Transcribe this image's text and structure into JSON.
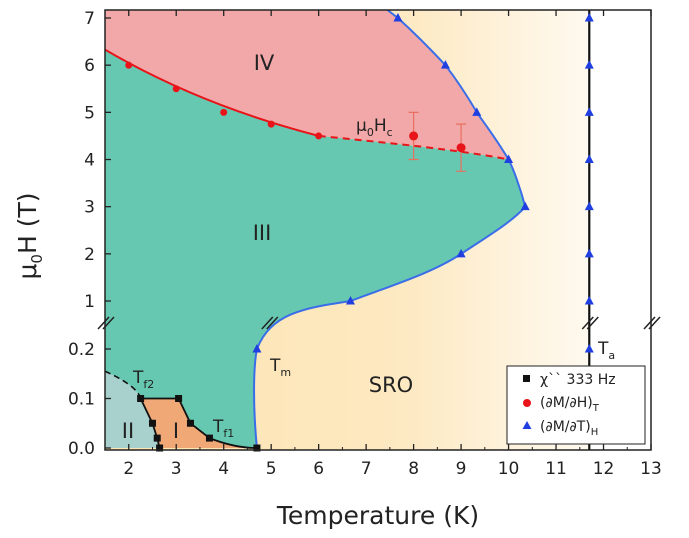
{
  "chart_data": {
    "type": "scatter",
    "title": "",
    "xlabel": "Temperature (K)",
    "ylabel": "μ0H (T)",
    "ylabel_main": "μ",
    "ylabel_sub": "0",
    "ylabel_rest": "H (T)",
    "xlim": [
      1.5,
      13
    ],
    "x_ticks": [
      2,
      3,
      4,
      5,
      6,
      7,
      8,
      9,
      10,
      11,
      12,
      13
    ],
    "y_scale": "broken",
    "y_lower_range": [
      0,
      0.25
    ],
    "y_upper_range": [
      0.75,
      7.2
    ],
    "y_ticks_lower": [
      "0.0",
      "0.1",
      "0.2"
    ],
    "y_ticks_upper": [
      "1",
      "2",
      "3",
      "4",
      "5",
      "6",
      "7"
    ],
    "legend_position": "bottom-right",
    "regions": [
      {
        "label": "I",
        "color": "#f0a877"
      },
      {
        "label": "II",
        "color": "#a8d0cc"
      },
      {
        "label": "III",
        "color": "#66c8b0"
      },
      {
        "label": "IV",
        "color": "#f2a8a8"
      },
      {
        "label": "SRO",
        "color": "#fde9c0"
      }
    ],
    "annotations": {
      "hc_main": "μ",
      "hc_sub1": "0",
      "hc_mid": "H",
      "hc_sub2": "c",
      "tf2_main": "T",
      "tf2_sub": "f2",
      "tf1_main": "T",
      "tf1_sub": "f1",
      "tm_main": "T",
      "tm_sub": "m",
      "ta_main": "T",
      "ta_sub": "a"
    },
    "series": [
      {
        "name": "χ`` 333 Hz",
        "marker": "square",
        "color": "#111111",
        "points": [
          [
            2.25,
            0.1
          ],
          [
            2.5,
            0.05
          ],
          [
            2.6,
            0.02
          ],
          [
            2.65,
            0.0
          ],
          [
            3.05,
            0.1
          ],
          [
            3.3,
            0.05
          ],
          [
            3.7,
            0.02
          ],
          [
            4.7,
            0.0
          ]
        ]
      },
      {
        "name": "(∂M/∂H)T",
        "name_main": "(∂M/∂H)",
        "name_sub": "T",
        "marker": "circle",
        "color": "#e8141a",
        "points": [
          [
            2.0,
            6.0
          ],
          [
            3.0,
            5.5
          ],
          [
            4.0,
            5.0
          ],
          [
            5.0,
            4.75
          ],
          [
            6.0,
            4.5
          ],
          [
            8.0,
            4.5
          ],
          [
            9.0,
            4.25
          ]
        ],
        "error_bars": [
          [
            8.0,
            0.5
          ],
          [
            9.0,
            0.5
          ]
        ]
      },
      {
        "name": "(∂M/∂T)H",
        "name_main": "(∂M/∂T)",
        "name_sub": "H",
        "marker": "triangle",
        "color": "#1f3fe0",
        "points": [
          [
            4.7,
            0.2
          ],
          [
            6.67,
            1.0
          ],
          [
            9.0,
            2.0
          ],
          [
            10.35,
            3.0
          ],
          [
            10.0,
            4.0
          ],
          [
            9.33,
            5.0
          ],
          [
            8.67,
            6.0
          ],
          [
            7.67,
            7.0
          ],
          [
            11.7,
            0.2
          ],
          [
            11.7,
            1.0
          ],
          [
            11.7,
            2.0
          ],
          [
            11.7,
            3.0
          ],
          [
            11.7,
            4.0
          ],
          [
            11.7,
            5.0
          ],
          [
            11.7,
            6.0
          ],
          [
            11.7,
            7.0
          ]
        ]
      }
    ]
  }
}
